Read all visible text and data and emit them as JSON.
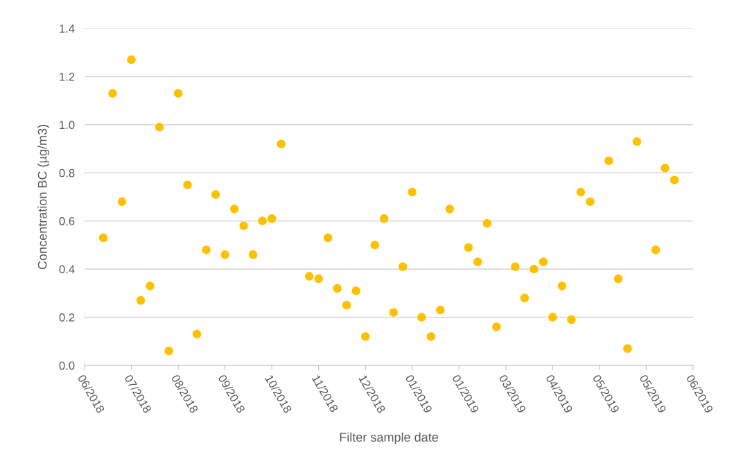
{
  "chart_data": {
    "type": "scatter",
    "xlabel": "Filter sample date",
    "ylabel": "Concentration BC (µg/m3)",
    "x": [
      "2018-06-17",
      "2018-06-23",
      "2018-06-29",
      "2018-07-05",
      "2018-07-11",
      "2018-07-17",
      "2018-07-23",
      "2018-07-29",
      "2018-08-04",
      "2018-08-10",
      "2018-08-16",
      "2018-08-22",
      "2018-08-28",
      "2018-09-03",
      "2018-09-09",
      "2018-09-15",
      "2018-09-21",
      "2018-09-27",
      "2018-10-03",
      "2018-10-09",
      "2018-10-27",
      "2018-11-02",
      "2018-11-08",
      "2018-11-14",
      "2018-11-20",
      "2018-11-26",
      "2018-12-02",
      "2018-12-08",
      "2018-12-14",
      "2018-12-20",
      "2018-12-26",
      "2019-01-01",
      "2019-01-07",
      "2019-01-13",
      "2019-01-19",
      "2019-01-25",
      "2019-02-06",
      "2019-02-12",
      "2019-02-18",
      "2019-02-24",
      "2019-03-08",
      "2019-03-14",
      "2019-03-20",
      "2019-03-26",
      "2019-04-01",
      "2019-04-07",
      "2019-04-13",
      "2019-04-19",
      "2019-04-25",
      "2019-05-07",
      "2019-05-13",
      "2019-05-19",
      "2019-05-25",
      "2019-06-06",
      "2019-06-12",
      "2019-06-18"
    ],
    "series": [
      {
        "color": "#ffc000",
        "values": [
          0.53,
          1.13,
          0.68,
          1.27,
          0.27,
          0.33,
          0.99,
          0.06,
          1.13,
          0.75,
          0.13,
          0.48,
          0.71,
          0.46,
          0.65,
          0.58,
          0.46,
          0.6,
          0.61,
          0.92,
          0.37,
          0.36,
          0.53,
          0.32,
          0.25,
          0.31,
          0.12,
          0.5,
          0.61,
          0.22,
          0.41,
          0.72,
          0.2,
          0.12,
          0.23,
          0.65,
          0.49,
          0.43,
          0.59,
          0.16,
          0.41,
          0.28,
          0.4,
          0.43,
          0.2,
          0.33,
          0.19,
          0.72,
          0.68,
          0.85,
          0.36,
          0.07,
          0.93,
          0.48,
          0.82,
          0.77
        ]
      }
    ],
    "xlim": [
      "2018-06-05",
      "2019-06-30"
    ],
    "xticks": [
      {
        "value": "2018-06-05",
        "label": "06/2018"
      },
      {
        "value": "2018-07-05",
        "label": "07/2018"
      },
      {
        "value": "2018-08-04",
        "label": "08/2018"
      },
      {
        "value": "2018-09-03",
        "label": "09/2018"
      },
      {
        "value": "2018-10-03",
        "label": "10/2018"
      },
      {
        "value": "2018-11-02",
        "label": "11/2018"
      },
      {
        "value": "2018-12-02",
        "label": "12/2018"
      },
      {
        "value": "2019-01-01",
        "label": "01/2019"
      },
      {
        "value": "2019-01-31",
        "label": "01/2019"
      },
      {
        "value": "2019-03-02",
        "label": "03/2019"
      },
      {
        "value": "2019-04-01",
        "label": "04/2019"
      },
      {
        "value": "2019-05-01",
        "label": "05/2019"
      },
      {
        "value": "2019-05-31",
        "label": "05/2019"
      },
      {
        "value": "2019-06-30",
        "label": "06/2019"
      }
    ],
    "ylim": [
      0,
      1.4
    ],
    "yticks": [
      {
        "value": 0,
        "label": "0.0"
      },
      {
        "value": 0.2,
        "label": "0.2"
      },
      {
        "value": 0.4,
        "label": "0.4"
      },
      {
        "value": 0.6,
        "label": "0.6"
      },
      {
        "value": 0.8,
        "label": "0.8"
      },
      {
        "value": 1.0,
        "label": "1.0"
      },
      {
        "value": 1.2,
        "label": "1.2"
      },
      {
        "value": 1.4,
        "label": "1.4"
      }
    ],
    "grid": "y",
    "marker": "circle"
  }
}
